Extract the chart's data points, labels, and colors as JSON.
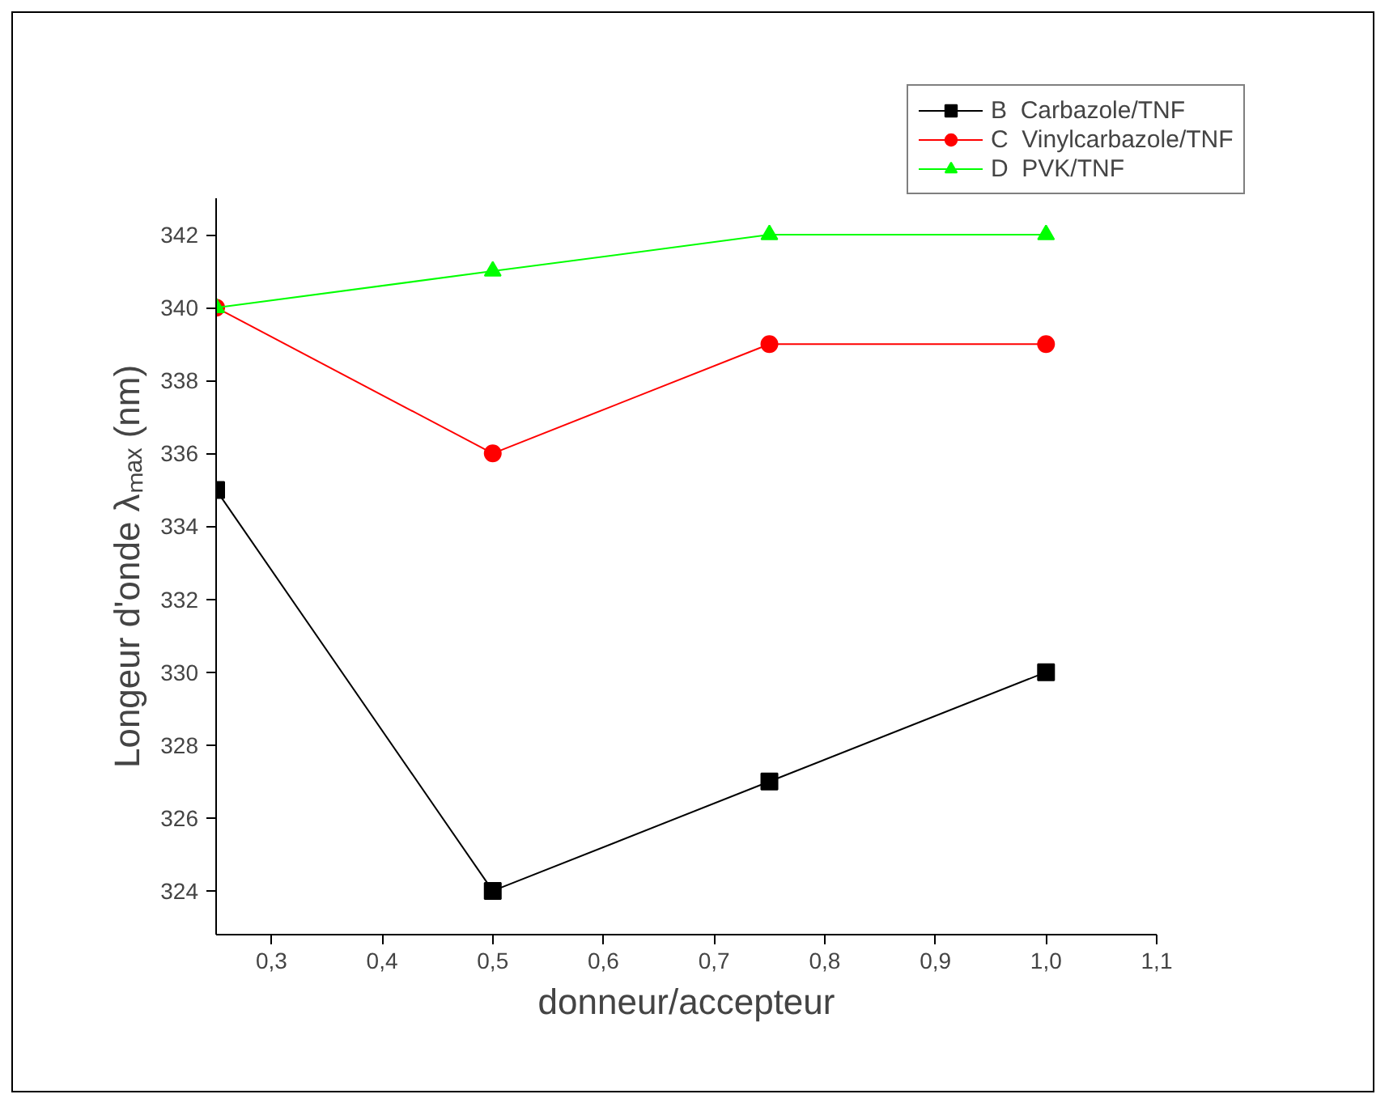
{
  "chart_data": {
    "type": "line",
    "xlabel": "donneur/accepteur",
    "ylabel": "Longeur d'onde λₘₐₓ (nm)",
    "xlim": [
      0.25,
      1.1
    ],
    "xticks": [
      {
        "value": 0.3,
        "label": "0,3"
      },
      {
        "value": 0.4,
        "label": "0,4"
      },
      {
        "value": 0.5,
        "label": "0,5"
      },
      {
        "value": 0.6,
        "label": "0,6"
      },
      {
        "value": 0.7,
        "label": "0,7"
      },
      {
        "value": 0.8,
        "label": "0,8"
      },
      {
        "value": 0.9,
        "label": "0,9"
      },
      {
        "value": 1.0,
        "label": "1,0"
      },
      {
        "value": 1.1,
        "label": "1,1"
      }
    ],
    "ylim": [
      322.8,
      343
    ],
    "yticks": [
      324,
      326,
      328,
      330,
      332,
      334,
      336,
      338,
      340,
      342
    ],
    "x": [
      0.25,
      0.5,
      0.75,
      1.0
    ],
    "series": [
      {
        "name": "B  Carbazole/TNF",
        "color": "#000000",
        "marker": "square",
        "values": [
          335,
          324,
          327,
          330
        ]
      },
      {
        "name": "C  Vinylcarbazole/TNF",
        "color": "#ff0000",
        "marker": "circle",
        "values": [
          340,
          336,
          339,
          339
        ]
      },
      {
        "name": "D  PVK/TNF",
        "color": "#00ff00",
        "marker": "triangle",
        "values": [
          340,
          341,
          342,
          342
        ]
      }
    ],
    "legend": "top right",
    "grid": false,
    "line_style": "solid"
  }
}
